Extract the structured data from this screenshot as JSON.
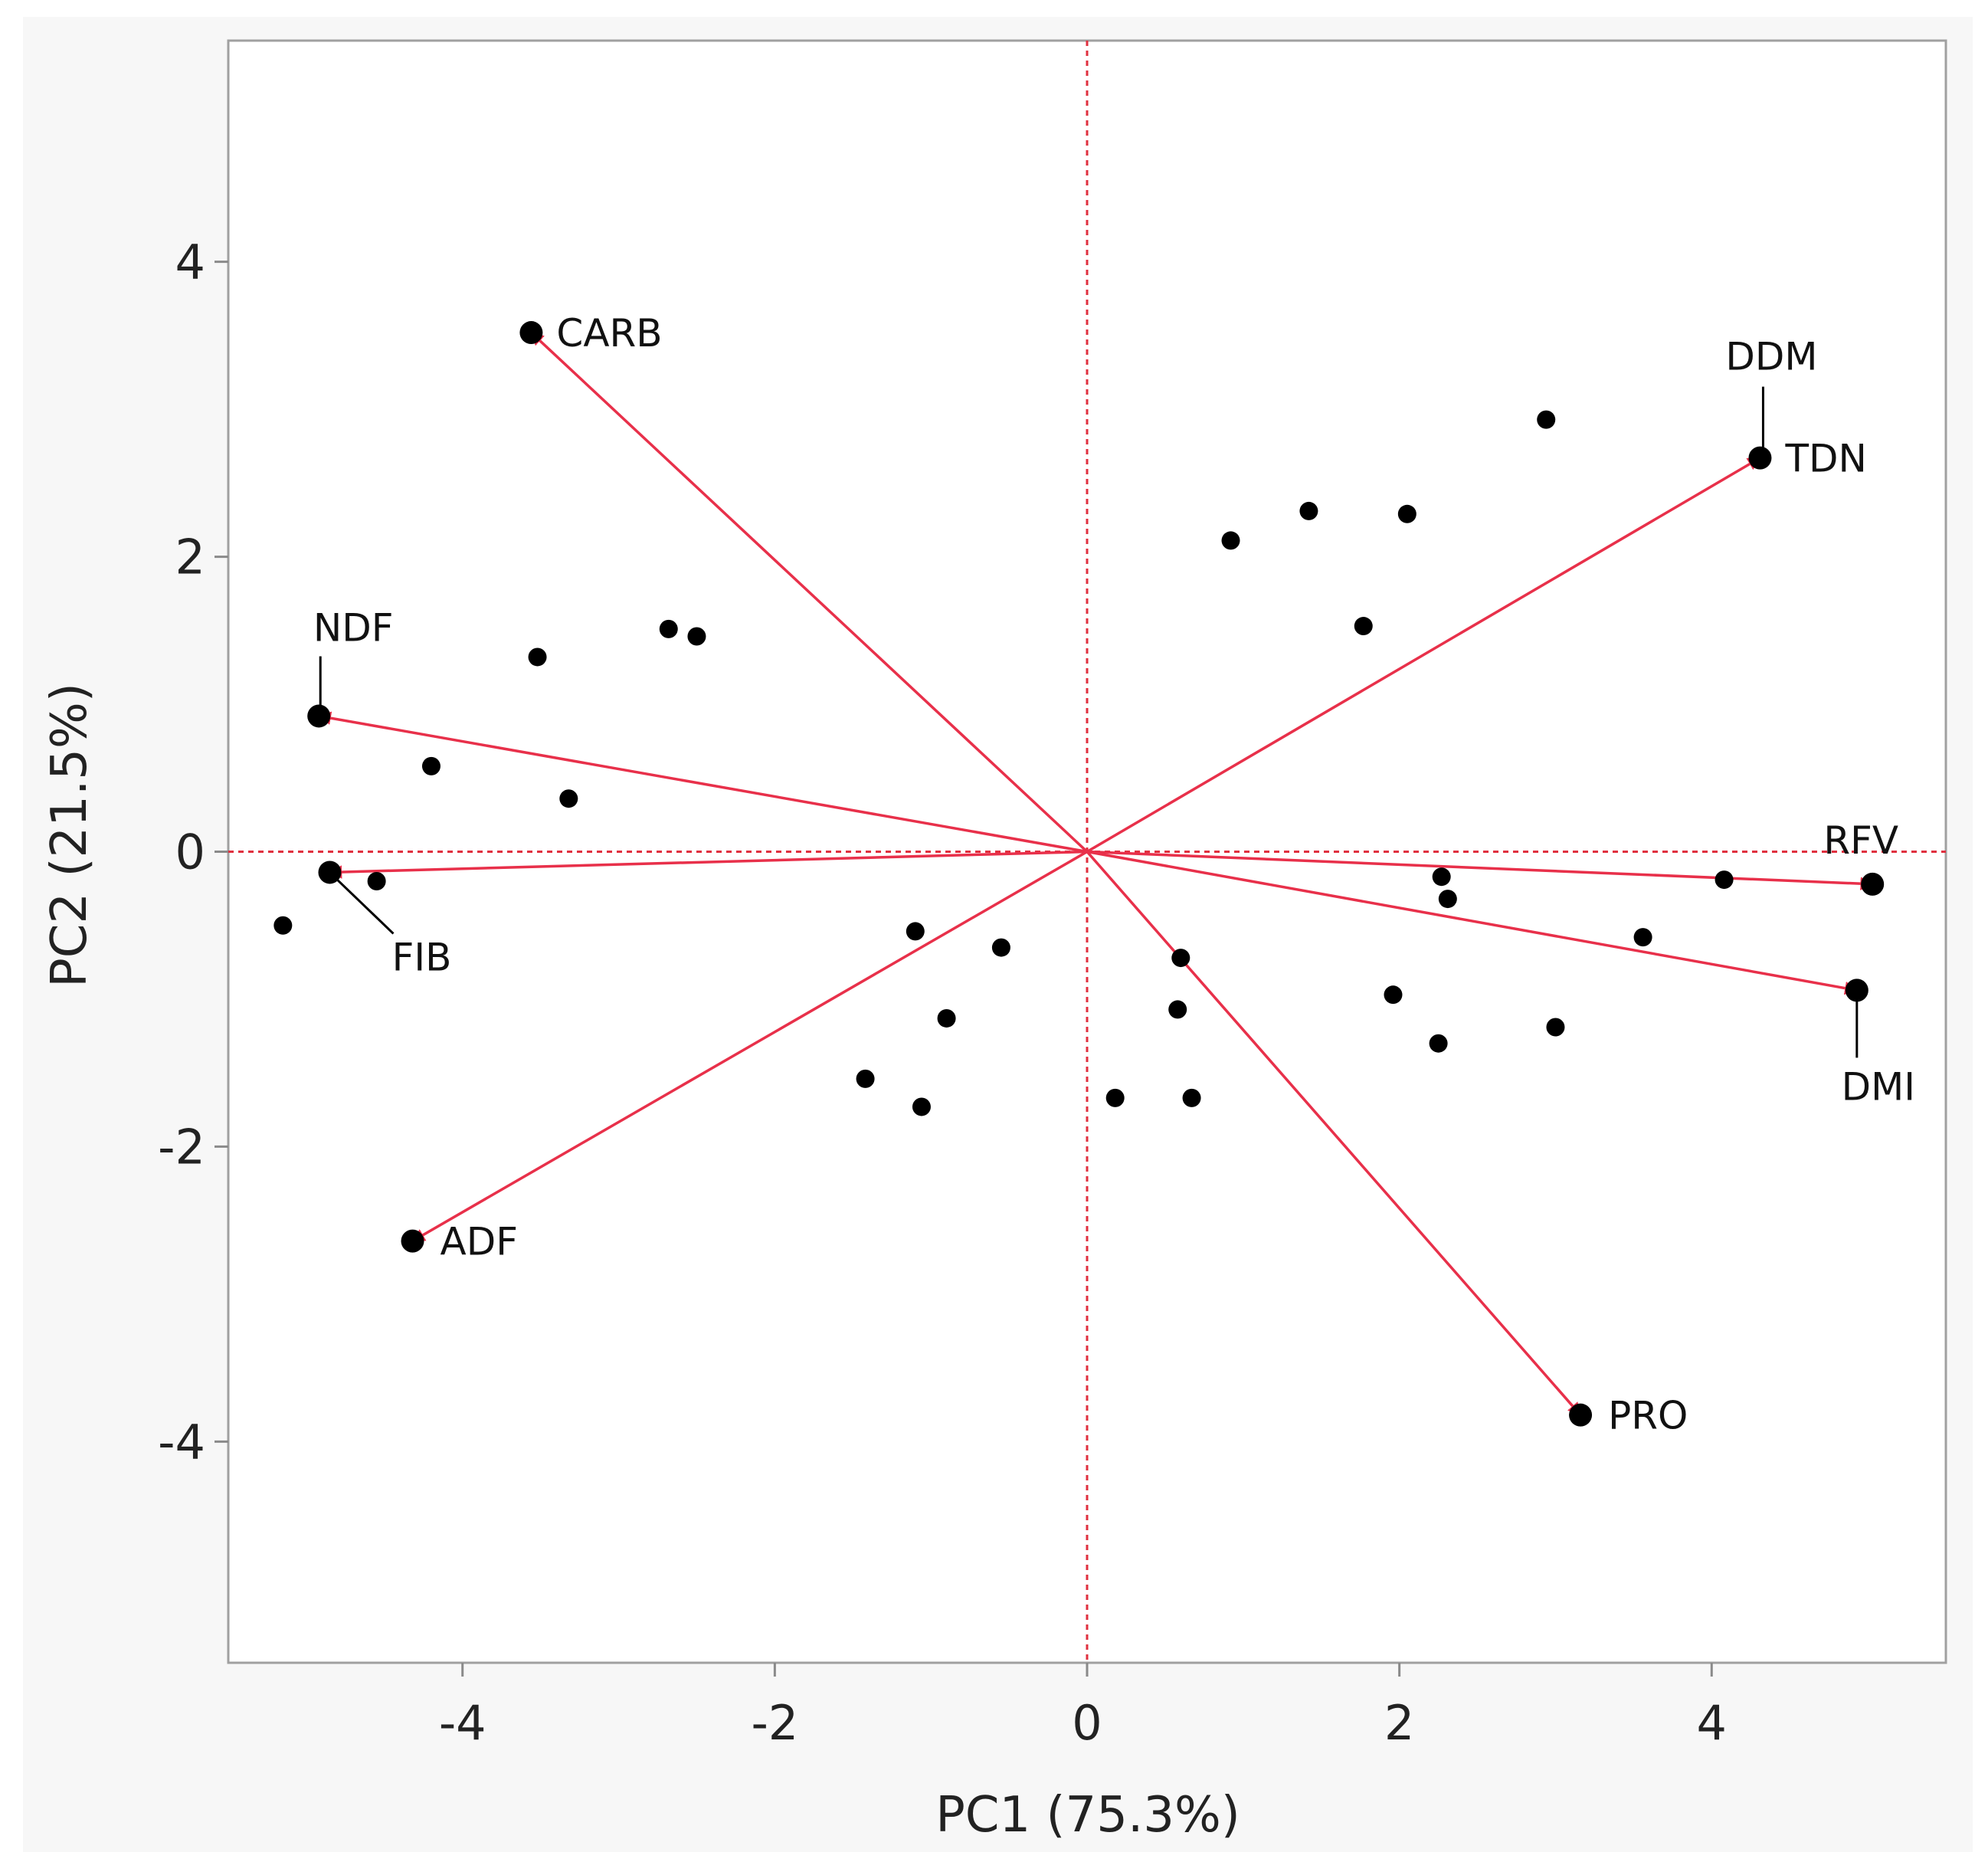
{
  "chart_data": {
    "type": "scatter",
    "subtype": "biplot",
    "title": "",
    "xlabel": "PC1 (75.3%)",
    "ylabel": "PC2  (21.5%)",
    "xlim": [
      -5.5,
      5.5
    ],
    "ylim": [
      -5.5,
      5.5
    ],
    "x_ticks": [
      -4,
      -2,
      0,
      2,
      4
    ],
    "y_ticks": [
      4,
      2,
      0,
      -2,
      -4
    ],
    "grid": false,
    "reference_lines": {
      "x": 0,
      "y": 0,
      "style": "dotted",
      "color": "#e0303f"
    },
    "colors": {
      "arrow": "#e8304a",
      "point": "#000000",
      "frame": "#a0a0a0",
      "outer_bg": "#f7f7f7"
    },
    "scores": [
      {
        "x": -5.15,
        "y": -0.5
      },
      {
        "x": -4.55,
        "y": -0.2
      },
      {
        "x": -4.2,
        "y": 0.58
      },
      {
        "x": -3.52,
        "y": 1.32
      },
      {
        "x": -3.32,
        "y": 0.36
      },
      {
        "x": -2.68,
        "y": 1.51
      },
      {
        "x": -2.5,
        "y": 1.46
      },
      {
        "x": -1.42,
        "y": -1.54
      },
      {
        "x": -1.1,
        "y": -0.54
      },
      {
        "x": -1.06,
        "y": -1.73
      },
      {
        "x": -0.9,
        "y": -1.13
      },
      {
        "x": -0.55,
        "y": -0.65
      },
      {
        "x": 0.18,
        "y": -1.67
      },
      {
        "x": 0.58,
        "y": -1.07
      },
      {
        "x": 0.6,
        "y": -0.72
      },
      {
        "x": 0.67,
        "y": -1.67
      },
      {
        "x": 0.92,
        "y": 2.11
      },
      {
        "x": 1.42,
        "y": 2.31
      },
      {
        "x": 1.77,
        "y": 1.53
      },
      {
        "x": 1.96,
        "y": -0.97
      },
      {
        "x": 2.05,
        "y": 2.29
      },
      {
        "x": 2.25,
        "y": -1.3
      },
      {
        "x": 2.27,
        "y": -0.17
      },
      {
        "x": 2.31,
        "y": -0.32
      },
      {
        "x": 2.94,
        "y": 2.93
      },
      {
        "x": 3.0,
        "y": -1.19
      },
      {
        "x": 3.56,
        "y": -0.58
      },
      {
        "x": 4.08,
        "y": -0.19
      }
    ],
    "loadings": [
      {
        "name": "CARB",
        "x": -3.56,
        "y": 3.52
      },
      {
        "name": "DDM",
        "x": 4.31,
        "y": 2.67
      },
      {
        "name": "TDN",
        "x": 4.31,
        "y": 2.67
      },
      {
        "name": "NDF",
        "x": -4.92,
        "y": 0.92
      },
      {
        "name": "FIB",
        "x": -4.85,
        "y": -0.14
      },
      {
        "name": "RFV",
        "x": 5.03,
        "y": -0.22
      },
      {
        "name": "DMI",
        "x": 4.93,
        "y": -0.94
      },
      {
        "name": "ADF",
        "x": -4.32,
        "y": -2.64
      },
      {
        "name": "PRO",
        "x": 3.16,
        "y": -3.82
      }
    ]
  }
}
